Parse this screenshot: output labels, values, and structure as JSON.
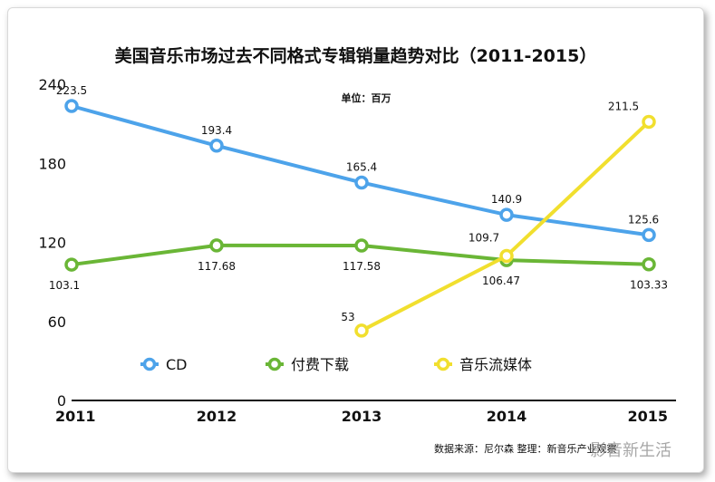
{
  "chart_data": {
    "type": "line",
    "title": "美国音乐市场过去不同格式专辑销量趋势对比（2011-2015）",
    "unit_note": "单位：百万",
    "categories": [
      "2011",
      "2012",
      "2013",
      "2014",
      "2015"
    ],
    "ylim": [
      0,
      240
    ],
    "yticks": [
      0,
      60,
      120,
      180,
      240
    ],
    "grid": false,
    "legend_position": "bottom",
    "series": [
      {
        "name": "CD",
        "color": "#4da3ea",
        "values": [
          223.5,
          193.4,
          165.4,
          140.9,
          125.6
        ],
        "labels": [
          "223.5",
          "193.4",
          "165.4",
          "140.9",
          "125.6"
        ]
      },
      {
        "name": "付费下载",
        "color": "#6ab636",
        "values": [
          103.1,
          117.68,
          117.58,
          106.47,
          103.33
        ],
        "labels": [
          "103.1",
          "117.68",
          "117.58",
          "106.47",
          "103.33"
        ]
      },
      {
        "name": "音乐流媒体",
        "color": "#f1df2e",
        "values": [
          null,
          null,
          53,
          109.7,
          211.5
        ],
        "labels": [
          "",
          "",
          "53",
          "109.7",
          "211.5"
        ]
      }
    ],
    "source": "数据来源：尼尔森   整理：新音乐产业观察",
    "watermark": "影音新生活"
  }
}
